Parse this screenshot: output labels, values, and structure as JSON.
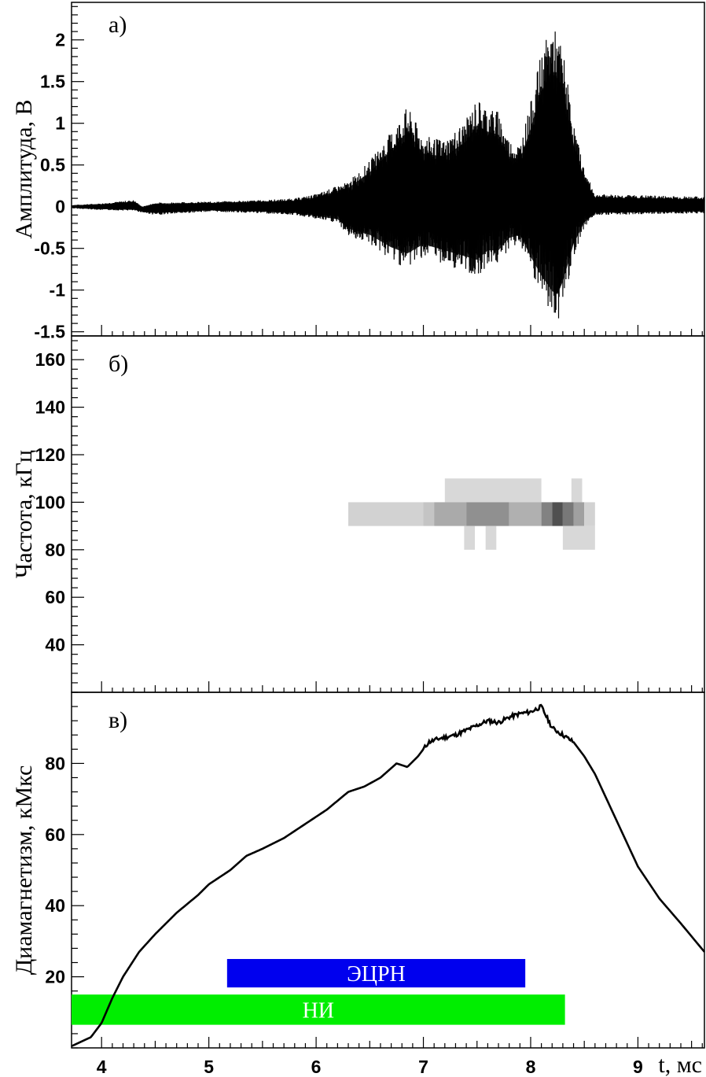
{
  "chart_data": [
    {
      "type": "line",
      "panel_label": "а)",
      "ylabel": "Амплитуда, В",
      "xlim": [
        3.72,
        9.62
      ],
      "ylim": [
        -1.55,
        2.45
      ],
      "yticks": [
        -1.5,
        -1,
        -0.5,
        0,
        0.5,
        1,
        1.5,
        2
      ],
      "ytick_labels": [
        "-1.5",
        "-1",
        "-0.5",
        "0",
        "0.5",
        "1",
        "1.5",
        "2"
      ],
      "grid": false,
      "series": [
        {
          "kind": "oscillating_signal",
          "upper_envelope": {
            "x": [
              3.72,
              4.0,
              4.3,
              4.38,
              4.5,
              5.0,
              5.5,
              5.8,
              6.0,
              6.2,
              6.3,
              6.5,
              6.7,
              6.85,
              7.0,
              7.2,
              7.4,
              7.5,
              7.6,
              7.7,
              7.8,
              7.9,
              8.0,
              8.1,
              8.2,
              8.3,
              8.4,
              8.5,
              8.6,
              9.62
            ],
            "y": [
              0.02,
              0.04,
              0.08,
              0.0,
              0.05,
              0.06,
              0.08,
              0.1,
              0.15,
              0.25,
              0.3,
              0.55,
              0.9,
              1.2,
              0.85,
              0.8,
              1.05,
              1.3,
              1.2,
              1.15,
              0.8,
              0.75,
              1.25,
              1.85,
              2.2,
              1.9,
              1.0,
              0.45,
              0.15,
              0.12
            ]
          },
          "lower_envelope": {
            "x": [
              3.72,
              4.0,
              4.3,
              4.5,
              5.0,
              5.5,
              5.8,
              6.0,
              6.2,
              6.3,
              6.5,
              6.7,
              6.85,
              7.0,
              7.2,
              7.4,
              7.5,
              7.6,
              7.7,
              7.8,
              7.9,
              8.0,
              8.1,
              8.2,
              8.25,
              8.3,
              8.4,
              8.5,
              8.6,
              9.62
            ],
            "y": [
              -0.02,
              -0.04,
              -0.05,
              -0.1,
              -0.06,
              -0.08,
              -0.1,
              -0.15,
              -0.2,
              -0.35,
              -0.45,
              -0.65,
              -0.75,
              -0.6,
              -0.7,
              -0.8,
              -0.85,
              -0.7,
              -0.7,
              -0.5,
              -0.45,
              -0.8,
              -1.1,
              -1.35,
              -1.4,
              -1.2,
              -0.6,
              -0.25,
              -0.1,
              -0.08
            ]
          }
        }
      ]
    },
    {
      "type": "heatmap",
      "panel_label": "б)",
      "ylabel": "Частота, кГц",
      "xlim": [
        3.72,
        9.62
      ],
      "ylim": [
        20,
        170
      ],
      "yticks": [
        40,
        60,
        80,
        100,
        120,
        140,
        160
      ],
      "ytick_labels": [
        "40",
        "60",
        "80",
        "100",
        "120",
        "140",
        "160"
      ],
      "cell_height_khz": 10,
      "cells": [
        {
          "x0": 7.2,
          "x1": 8.1,
          "ylow": 100,
          "level": 0.12
        },
        {
          "x0": 8.38,
          "x1": 8.48,
          "ylow": 100,
          "level": 0.12
        },
        {
          "x0": 6.3,
          "x1": 7.0,
          "ylow": 90,
          "level": 0.15
        },
        {
          "x0": 7.0,
          "x1": 7.1,
          "ylow": 90,
          "level": 0.22
        },
        {
          "x0": 7.1,
          "x1": 7.4,
          "ylow": 90,
          "level": 0.35
        },
        {
          "x0": 7.4,
          "x1": 7.8,
          "ylow": 90,
          "level": 0.48
        },
        {
          "x0": 7.8,
          "x1": 8.1,
          "ylow": 90,
          "level": 0.32
        },
        {
          "x0": 8.1,
          "x1": 8.2,
          "ylow": 90,
          "level": 0.55
        },
        {
          "x0": 8.2,
          "x1": 8.3,
          "ylow": 90,
          "level": 0.8
        },
        {
          "x0": 8.3,
          "x1": 8.4,
          "ylow": 90,
          "level": 0.6
        },
        {
          "x0": 8.4,
          "x1": 8.5,
          "ylow": 90,
          "level": 0.4
        },
        {
          "x0": 8.5,
          "x1": 8.6,
          "ylow": 90,
          "level": 0.15
        },
        {
          "x0": 7.38,
          "x1": 7.48,
          "ylow": 80,
          "level": 0.12
        },
        {
          "x0": 7.58,
          "x1": 7.68,
          "ylow": 80,
          "level": 0.12
        },
        {
          "x0": 8.3,
          "x1": 8.6,
          "ylow": 80,
          "level": 0.12
        }
      ]
    },
    {
      "type": "line",
      "panel_label": "в)",
      "ylabel": "Диамагнетизм, кМкс",
      "xlabel": "t, мс",
      "xlim": [
        3.72,
        9.62
      ],
      "ylim": [
        0,
        100
      ],
      "xticks": [
        4,
        5,
        6,
        7,
        8,
        9
      ],
      "xtick_labels": [
        "4",
        "5",
        "6",
        "7",
        "8",
        "9"
      ],
      "yticks": [
        20,
        40,
        60,
        80
      ],
      "ytick_labels": [
        "20",
        "40",
        "60",
        "80"
      ],
      "series": [
        {
          "x": [
            3.72,
            3.9,
            4.0,
            4.1,
            4.2,
            4.35,
            4.5,
            4.7,
            4.9,
            5.0,
            5.2,
            5.35,
            5.5,
            5.7,
            5.9,
            6.1,
            6.3,
            6.45,
            6.6,
            6.75,
            6.85,
            6.95,
            7.05,
            7.15,
            7.3,
            7.45,
            7.6,
            7.7,
            7.8,
            7.9,
            8.0,
            8.1,
            8.15,
            8.2,
            8.3,
            8.4,
            8.5,
            8.6,
            8.8,
            9.0,
            9.2,
            9.4,
            9.62
          ],
          "y": [
            0.5,
            3,
            7,
            14,
            20,
            27,
            32,
            38,
            43,
            46,
            50,
            54,
            56,
            59,
            63,
            67,
            72,
            73.5,
            76,
            80,
            79,
            82,
            86,
            87,
            88,
            90,
            92,
            91.5,
            93,
            94,
            94.5,
            96,
            93,
            90,
            88,
            86,
            82,
            77,
            64,
            51,
            42,
            35,
            27
          ]
        }
      ],
      "intervals": [
        {
          "label": "ЭЦРН",
          "x0": 5.17,
          "x1": 7.95,
          "y0": 17,
          "y1": 25,
          "color": "#0000ee"
        },
        {
          "label": "НИ",
          "x0": 3.72,
          "x1": 8.32,
          "y0": 6.5,
          "y1": 15,
          "color": "#00ee00"
        }
      ]
    }
  ]
}
